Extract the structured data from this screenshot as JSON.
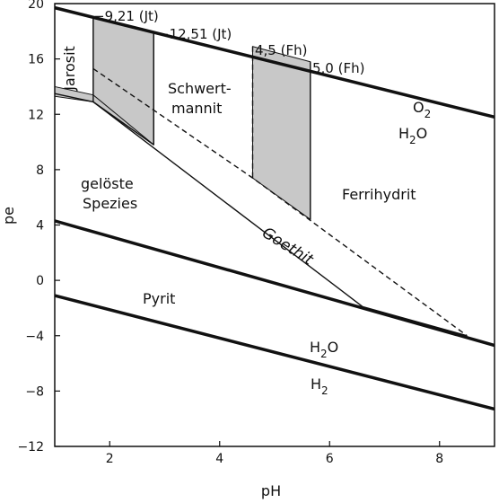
{
  "chart_data": {
    "type": "line",
    "title": "",
    "xlabel": "pH",
    "ylabel": "pe",
    "xlim": [
      1,
      9
    ],
    "ylim": [
      -12,
      20
    ],
    "xticks": [
      2,
      4,
      6,
      8
    ],
    "yticks": [
      20,
      16,
      12,
      8,
      4,
      0,
      -4,
      -8,
      -12
    ],
    "boundaries": [
      {
        "name": "O2/H2O",
        "points": [
          [
            1,
            19.7
          ],
          [
            9,
            11.8
          ]
        ],
        "style": "thick"
      },
      {
        "name": "pyrite-upper",
        "points": [
          [
            1,
            4.3
          ],
          [
            9,
            -4.7
          ]
        ],
        "style": "thick"
      },
      {
        "name": "H2O/H2",
        "points": [
          [
            1,
            -1.1
          ],
          [
            9,
            -9.3
          ]
        ],
        "style": "thick"
      },
      {
        "name": "jarosite-base",
        "points": [
          [
            1,
            13.5
          ],
          [
            1.7,
            12.9
          ],
          [
            2.8,
            9.8
          ]
        ],
        "style": "thin"
      },
      {
        "name": "goethite-left",
        "points": [
          [
            1.7,
            12.9
          ],
          [
            6.6,
            -1.9
          ]
        ],
        "style": "thin"
      },
      {
        "name": "goethite-right",
        "points": [
          [
            1.7,
            15.3
          ],
          [
            4.6,
            7.4
          ],
          [
            8.5,
            -4.0
          ]
        ],
        "style": "dashed"
      },
      {
        "name": "goethite-bottom",
        "points": [
          [
            6.6,
            -1.9
          ],
          [
            8.5,
            -4.0
          ]
        ],
        "style": "thin"
      }
    ],
    "shaded_regions": [
      {
        "name": "jt-band",
        "points": [
          [
            1.7,
            19.0
          ],
          [
            2.8,
            17.9
          ],
          [
            2.8,
            9.8
          ],
          [
            1.7,
            12.9
          ]
        ]
      },
      {
        "name": "fh-band",
        "points": [
          [
            4.6,
            16.9
          ],
          [
            5.65,
            15.8
          ],
          [
            5.65,
            4.4
          ],
          [
            4.6,
            7.4
          ]
        ]
      },
      {
        "name": "left-sliver",
        "points": [
          [
            1,
            14.0
          ],
          [
            1.7,
            13.4
          ],
          [
            2.8,
            9.8
          ],
          [
            1.7,
            12.9
          ],
          [
            1,
            13.3
          ]
        ]
      },
      {
        "name": "goethite-sliver",
        "points": [
          [
            8.35,
            -3.85
          ],
          [
            8.5,
            -4.0
          ],
          [
            6.9,
            -2.3
          ]
        ]
      }
    ],
    "vertical_lines": [
      {
        "x": 1.7,
        "from": 12.9,
        "to": 19.0,
        "style": "solid"
      },
      {
        "x": 2.8,
        "from": 9.8,
        "to": 17.9,
        "style": "solid"
      },
      {
        "x": 4.6,
        "from": 7.4,
        "to": 16.9,
        "style": "dashed"
      },
      {
        "x": 5.65,
        "from": 4.4,
        "to": 15.8,
        "style": "solid"
      }
    ],
    "annotations": {
      "jt1": "−9,21 (Jt)",
      "jt2": "−12,51 (Jt)",
      "fh1": "4,5 (Fh)",
      "fh2": "5,0 (Fh)",
      "jarosit": "Jarosit",
      "schwert1": "Schwert-",
      "schwert2": "mannit",
      "o2": "O",
      "o2_sub": "2",
      "h2o_top": "H",
      "h2o_top_sub": "2",
      "h2o_top_o": "O",
      "geloeste1": "gelöste",
      "geloeste2": "Spezies",
      "ferrihydrit": "Ferrihydrit",
      "goethit": "Goethit",
      "pyrit": "Pyrit",
      "h2o_bottom": "H",
      "h2o_bottom_sub": "2",
      "h2o_bottom_o": "O",
      "h2": "H",
      "h2_sub": "2"
    }
  }
}
